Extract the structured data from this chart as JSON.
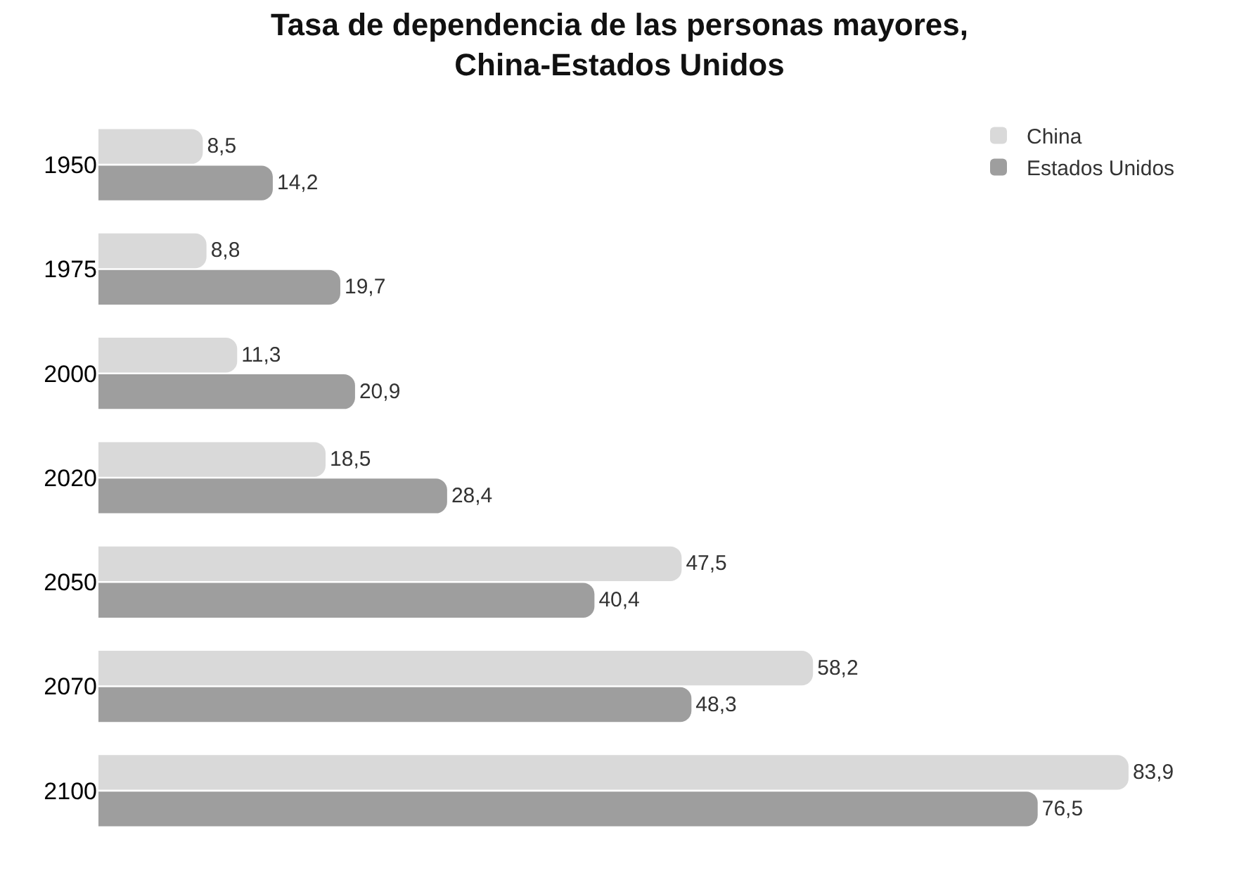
{
  "chart_data": {
    "type": "bar",
    "orientation": "horizontal",
    "title": "Tasa de dependencia de las personas mayores,\nChina-Estados Unidos",
    "categories": [
      "1950",
      "1975",
      "2000",
      "2020",
      "2050",
      "2070",
      "2100"
    ],
    "series": [
      {
        "name": "China",
        "color": "#d9d9d9",
        "values": [
          8.5,
          8.8,
          11.3,
          18.5,
          47.5,
          58.2,
          83.9
        ],
        "value_labels": [
          "8,5",
          "8,8",
          "11,3",
          "18,5",
          "47,5",
          "58,2",
          "83,9"
        ]
      },
      {
        "name": "Estados Unidos",
        "color": "#9e9e9e",
        "values": [
          14.2,
          19.7,
          20.9,
          28.4,
          40.4,
          48.3,
          76.5
        ],
        "value_labels": [
          "14,2",
          "19,7",
          "20,9",
          "28,4",
          "40,4",
          "48,3",
          "76,5"
        ]
      }
    ],
    "legend": "top right"
  }
}
